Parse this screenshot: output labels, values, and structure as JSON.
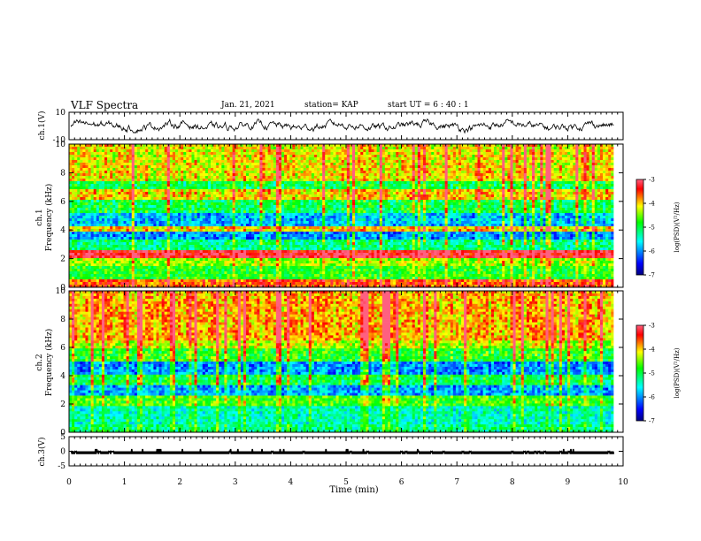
{
  "header": {
    "title": "VLF Spectra",
    "date": "Jan. 21, 2021",
    "station": "station= KAP",
    "start": "start  UT =  6 : 40 : 1"
  },
  "chart_data": [
    {
      "type": "line",
      "id": "ch1-voltage",
      "ylabel": "ch.1(V)",
      "ylim": [
        -10,
        10
      ],
      "yticks": [
        -10,
        10
      ],
      "xlim": [
        0,
        10
      ],
      "series": [
        {
          "trace": "noisy waveform oscillating roughly between -5 and 5 V",
          "min": -5,
          "max": 5
        }
      ]
    },
    {
      "type": "heatmap",
      "id": "ch1-spectrogram",
      "ylabel": "ch.1\nFrequency (kHz)",
      "ylim": [
        0,
        10
      ],
      "yticks": [
        0,
        2,
        4,
        6,
        8,
        10
      ],
      "xlim": [
        0,
        9.83
      ],
      "colorbar": {
        "label": "log(PSD)(V²/Hz)",
        "range": [
          -7,
          -3
        ],
        "ticks": [
          -7,
          -6,
          -5,
          -4,
          -3
        ]
      },
      "bands_khz": [
        {
          "f": [
            0,
            0.6
          ],
          "level": -3.6
        },
        {
          "f": [
            0.6,
            1.5
          ],
          "level": -4.8
        },
        {
          "f": [
            1.5,
            2.1
          ],
          "level": -4.4
        },
        {
          "f": [
            2.1,
            2.6
          ],
          "level": -3.2
        },
        {
          "f": [
            2.6,
            3.3
          ],
          "level": -5.2
        },
        {
          "f": [
            3.3,
            3.8
          ],
          "level": -6.0
        },
        {
          "f": [
            3.8,
            4.3
          ],
          "level": -4.0
        },
        {
          "f": [
            4.3,
            5.2
          ],
          "level": -5.8
        },
        {
          "f": [
            5.2,
            6.2
          ],
          "level": -5.0
        },
        {
          "f": [
            6.2,
            6.8
          ],
          "level": -4.0
        },
        {
          "f": [
            6.8,
            7.4
          ],
          "level": -5.0
        },
        {
          "f": [
            7.4,
            10
          ],
          "level": -4.1
        }
      ]
    },
    {
      "type": "heatmap",
      "id": "ch2-spectrogram",
      "ylabel": "ch.2\nFrequency (kHz)",
      "ylim": [
        0,
        10
      ],
      "yticks": [
        0,
        2,
        4,
        6,
        8,
        10
      ],
      "xlim": [
        0,
        9.83
      ],
      "colorbar": {
        "label": "log(PSD)(V²/Hz)",
        "range": [
          -7,
          -3
        ],
        "ticks": [
          -7,
          -6,
          -5,
          -4,
          -3
        ]
      },
      "bands_khz": [
        {
          "f": [
            0,
            0.5
          ],
          "level": -5.2
        },
        {
          "f": [
            0.5,
            1.8
          ],
          "level": -5.4
        },
        {
          "f": [
            1.8,
            2.6
          ],
          "level": -4.7
        },
        {
          "f": [
            2.6,
            3.3
          ],
          "level": -5.9
        },
        {
          "f": [
            3.3,
            4.0
          ],
          "level": -5.0
        },
        {
          "f": [
            4.0,
            5.0
          ],
          "level": -6.0
        },
        {
          "f": [
            5.0,
            6.0
          ],
          "level": -4.8
        },
        {
          "f": [
            6.0,
            6.5
          ],
          "level": -4.3
        },
        {
          "f": [
            6.5,
            10
          ],
          "level": -3.9
        }
      ]
    },
    {
      "type": "line",
      "id": "ch3-voltage",
      "ylabel": "ch.3(V)",
      "ylim": [
        -5,
        5
      ],
      "yticks": [
        -5,
        0,
        5
      ],
      "xlim": [
        0,
        10
      ],
      "series": [
        {
          "trace": "flat dense trace near -0.5 V",
          "min": -1,
          "max": 0
        }
      ]
    }
  ],
  "xaxis": {
    "label": "Time (min)",
    "ticks": [
      0,
      1,
      2,
      3,
      4,
      5,
      6,
      7,
      8,
      9,
      10
    ],
    "range": [
      0,
      10
    ]
  },
  "colors": {
    "colormap": [
      "#000080",
      "#0000ff",
      "#00ffff",
      "#00ff00",
      "#ffff00",
      "#ff0000"
    ]
  }
}
